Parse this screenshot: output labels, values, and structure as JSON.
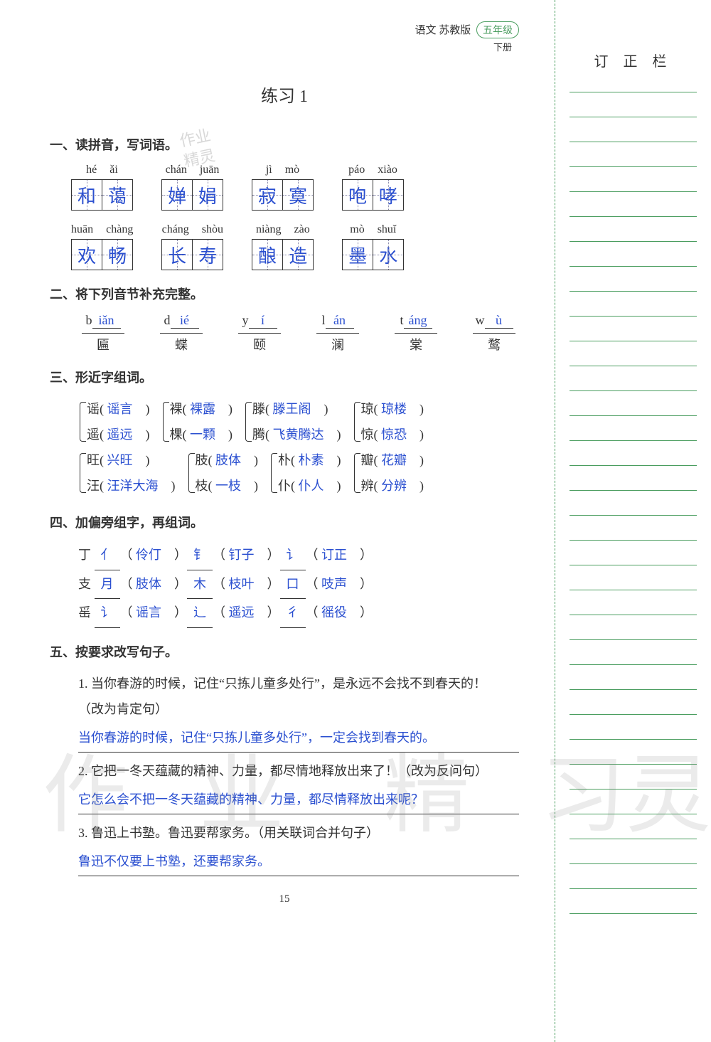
{
  "header": {
    "subject": "语文",
    "edition": "苏教版",
    "grade": "五年级",
    "volume": "下册"
  },
  "sidebar": {
    "title": "订 正 栏",
    "line_count": 34
  },
  "title": "练习 1",
  "stamp": {
    "line1": "作业",
    "line2": "精灵"
  },
  "section1": {
    "head": "一、读拼音，写词语。",
    "rows": [
      [
        {
          "py": [
            "hé",
            "ǎi"
          ],
          "ch": [
            "和",
            "蔼"
          ]
        },
        {
          "py": [
            "chán",
            "juān"
          ],
          "ch": [
            "婵",
            "娟"
          ]
        },
        {
          "py": [
            "jì",
            "mò"
          ],
          "ch": [
            "寂",
            "寞"
          ]
        },
        {
          "py": [
            "páo",
            "xiào"
          ],
          "ch": [
            "咆",
            "哮"
          ]
        }
      ],
      [
        {
          "py": [
            "huān",
            "chàng"
          ],
          "ch": [
            "欢",
            "畅"
          ]
        },
        {
          "py": [
            "cháng",
            "shòu"
          ],
          "ch": [
            "长",
            "寿"
          ]
        },
        {
          "py": [
            "niàng",
            "zào"
          ],
          "ch": [
            "酿",
            "造"
          ]
        },
        {
          "py": [
            "mò",
            "shuǐ"
          ],
          "ch": [
            "墨",
            "水"
          ]
        }
      ]
    ]
  },
  "section2": {
    "head": "二、将下列音节补充完整。",
    "items": [
      {
        "initial": "b",
        "final": "iǎn",
        "char": "匾"
      },
      {
        "initial": "d",
        "final": "ié",
        "char": "蝶"
      },
      {
        "initial": "y",
        "final": "í",
        "char": "颐"
      },
      {
        "initial": "l",
        "final": "án",
        "char": "澜"
      },
      {
        "initial": "t",
        "final": "áng",
        "char": "棠"
      },
      {
        "initial": "w",
        "final": "ù",
        "char": "鹜"
      }
    ]
  },
  "section3": {
    "head": "三、形近字组词。",
    "rows": [
      [
        {
          "a_char": "谣",
          "a_ans": "谣言",
          "b_char": "遥",
          "b_ans": "遥远"
        },
        {
          "a_char": "裸",
          "a_ans": "裸露",
          "b_char": "棵",
          "b_ans": "一颗"
        },
        {
          "a_char": "滕",
          "a_ans": "滕王阁",
          "b_char": "腾",
          "b_ans": "飞黄腾达"
        },
        {
          "a_char": "琼",
          "a_ans": "琼楼",
          "b_char": "惊",
          "b_ans": "惊恐"
        }
      ],
      [
        {
          "a_char": "旺",
          "a_ans": "兴旺",
          "b_char": "汪",
          "b_ans": "汪洋大海"
        },
        {
          "a_char": "肢",
          "a_ans": "肢体",
          "b_char": "枝",
          "b_ans": "一枝"
        },
        {
          "a_char": "朴",
          "a_ans": "朴素",
          "b_char": "仆",
          "b_ans": "仆人"
        },
        {
          "a_char": "瓣",
          "a_ans": "花瓣",
          "b_char": "辨",
          "b_ans": "分辨"
        }
      ]
    ]
  },
  "section4": {
    "head": "四、加偏旁组字，再组词。",
    "rows": [
      {
        "base": "丁",
        "items": [
          {
            "rad": "亻",
            "word": "伶仃"
          },
          {
            "rad": "钅",
            "word": "钉子"
          },
          {
            "rad": "讠",
            "word": "订正"
          }
        ]
      },
      {
        "base": "支",
        "items": [
          {
            "rad": "月",
            "word": "肢体"
          },
          {
            "rad": "木",
            "word": "枝叶"
          },
          {
            "rad": "口",
            "word": "吱声"
          }
        ]
      },
      {
        "base": "䍃",
        "items": [
          {
            "rad": "讠",
            "word": "谣言"
          },
          {
            "rad": "辶",
            "word": "遥远"
          },
          {
            "rad": "彳",
            "word": "徭役"
          }
        ]
      }
    ]
  },
  "section5": {
    "head": "五、按要求改写句子。",
    "items": [
      {
        "num": "1.",
        "q": "当你春游的时候，记住“只拣儿童多处行”，是永远不会找不到春天的！",
        "note": "（改为肯定句）",
        "ans": "当你春游的时候，记住“只拣儿童多处行”，一定会找到春天的。"
      },
      {
        "num": "2.",
        "q": "它把一冬天蕴藏的精神、力量，都尽情地释放出来了！（改为反问句）",
        "note": "",
        "ans": "它怎么会不把一冬天蕴藏的精神、力量，都尽情释放出来呢？"
      },
      {
        "num": "3.",
        "q": "鲁迅上书塾。鲁迅要帮家务。（用关联词合并句子）",
        "note": "",
        "ans": "鲁迅不仅要上书塾，还要帮家务。"
      }
    ]
  },
  "page_num": "15",
  "watermark": {
    "c1": "作",
    "c2": "业",
    "c3": "精",
    "c4": "习",
    "c5": "灵"
  }
}
